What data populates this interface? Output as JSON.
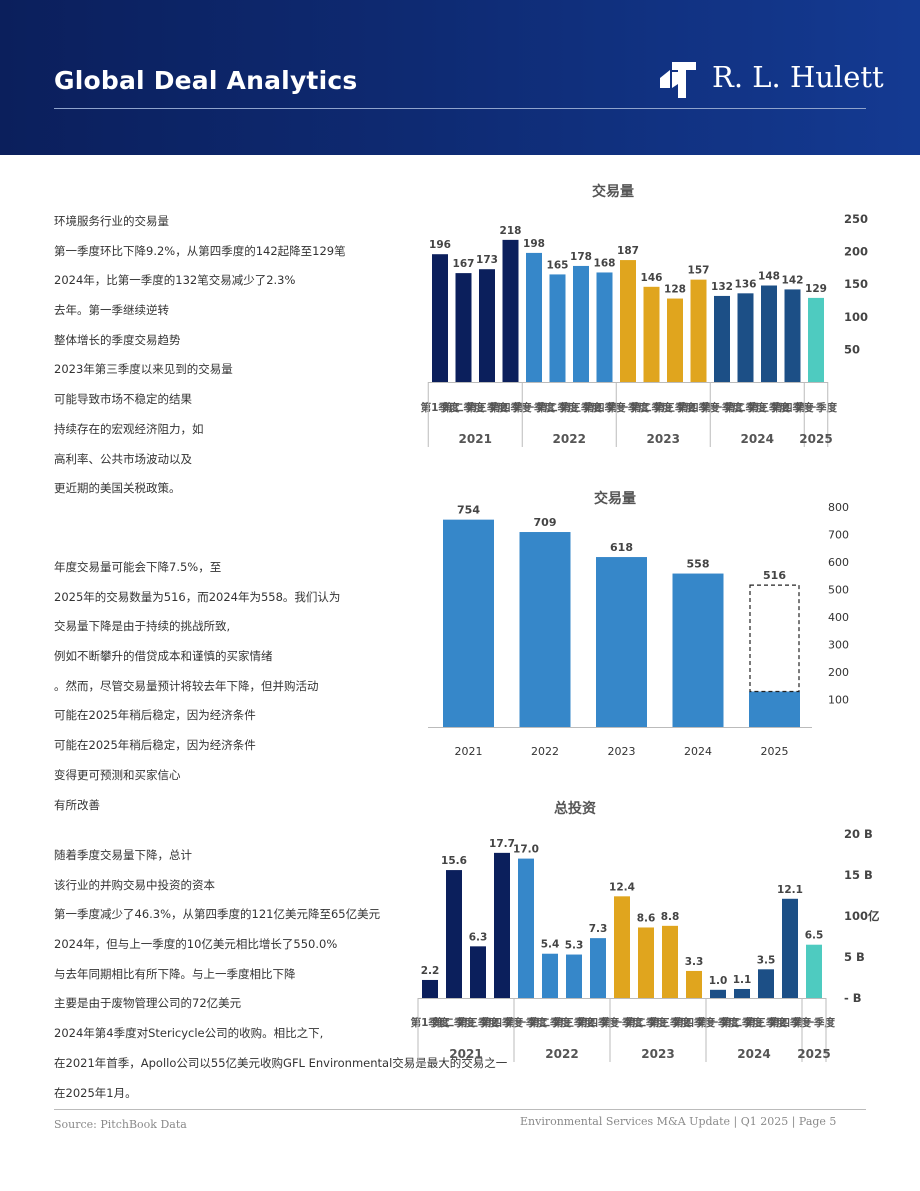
{
  "header": {
    "title": "Global Deal Analytics",
    "logo_text": "R. L. Hulett"
  },
  "text_block_1": [
    "环境服务行业的交易量",
    "第一季度环比下降9.2%，从第四季度的142起降至129笔",
    "2024年，比第一季度的132笔交易减少了2.3%",
    "去年。第一季继续逆转",
    "整体增长的季度交易趋势",
    "2023年第三季度以来见到的交易量",
    "可能导致市场不稳定的结果",
    "持续存在的宏观经济阻力，如",
    "高利率、公共市场波动以及",
    "更近期的美国关税政策。"
  ],
  "text_block_2": [
    "年度交易量可能会下降7.5%，至",
    "2025年的交易数量为516，而2024年为558。我们认为",
    "交易量下降是由于持续的挑战所致,",
    "例如不断攀升的借贷成本和谨慎的买家情绪",
    "。然而，尽管交易量预计将较去年下降，但并购活动",
    "可能在2025年稍后稳定，因为经济条件",
    "可能在2025年稍后稳定，因为经济条件",
    "变得更可预测和买家信心",
    "有所改善"
  ],
  "text_block_3": [
    "随着季度交易量下降，总计",
    "该行业的并购交易中投资的资本",
    "第一季度减少了46.3%，从第四季度的121亿美元降至65亿美元",
    "2024年，但与上一季度的10亿美元相比增长了550.0%",
    "与去年同期相比有所下降。与上一季度相比下降",
    "主要是由于废物管理公司的72亿美元",
    "2024年第4季度对Stericycle公司的收购。相比之下,",
    "在2021年首季，Apollo公司以55亿美元收购GFL Environmental交易是最大的交易之一",
    "在2025年1月。"
  ],
  "footer": {
    "source": "Source: PitchBook Data",
    "page": "Environmental Services M&A Update | Q1 2025 | Page 5"
  },
  "colors": {
    "y2021": "#0b1f5c",
    "y2022": "#3687c9",
    "y2023": "#e0a51e",
    "y2024": "#1c4f86",
    "y2025": "#4ecbc0",
    "annual": "#3687c9"
  },
  "chart_data": [
    {
      "type": "bar",
      "title": "交易量",
      "series": [
        {
          "values": [
            196,
            167,
            173,
            218,
            198,
            165,
            178,
            168,
            187,
            146,
            128,
            157,
            132,
            136,
            148,
            142,
            129
          ]
        }
      ],
      "quarters": [
        "第1季度",
        "第二季度",
        "第三季度",
        "第四季度",
        "第一季度",
        "第二季度",
        "第三季度",
        "第四季度",
        "第一季度",
        "第二季度",
        "第三季度",
        "第四季度",
        "第一季度",
        "第二季度",
        "第三季度",
        "第四季度",
        "第一季度"
      ],
      "years": [
        {
          "label": "2021",
          "count": 4
        },
        {
          "label": "2022",
          "count": 4
        },
        {
          "label": "2023",
          "count": 4
        },
        {
          "label": "2024",
          "count": 4
        },
        {
          "label": "2025",
          "count": 1
        }
      ],
      "yticks": [
        50,
        100,
        150,
        200,
        250
      ],
      "ylim": [
        0,
        250
      ],
      "axis_position": "right",
      "grid": false
    },
    {
      "type": "bar",
      "title": "交易量",
      "categories": [
        "2021",
        "2022",
        "2023",
        "2024",
        "2025"
      ],
      "values": [
        754,
        709,
        618,
        558,
        516
      ],
      "actual_2025": 129,
      "yticks": [
        100,
        200,
        300,
        400,
        500,
        600,
        700,
        800
      ],
      "ylim": [
        0,
        800
      ],
      "axis_position": "right",
      "projection": "2025 bar shown as dashed outline above actual portion",
      "grid": false
    },
    {
      "type": "bar",
      "title": "总投资",
      "series": [
        {
          "values": [
            2.2,
            15.6,
            6.3,
            17.7,
            17.0,
            5.4,
            5.3,
            7.3,
            12.4,
            8.6,
            8.8,
            3.3,
            1.0,
            1.1,
            3.5,
            12.1,
            6.5
          ]
        }
      ],
      "value_labels": [
        "2.2",
        "15.6",
        "6.3",
        "17.7",
        "17.0",
        "5.4",
        "5.3",
        "7.3",
        "12.4",
        "8.6",
        "8.8",
        "3.3",
        "1.0",
        "1.1",
        "3.5",
        "12.1",
        "6.5"
      ],
      "quarters": [
        "第1季度",
        "第二季度",
        "第三季度",
        "第四季度",
        "第一季度",
        "第二季度",
        "第三季度",
        "第四季度",
        "第一季度",
        "第二季度",
        "第三季度",
        "第四季度",
        "第一季度",
        "第二季度",
        "第三季度",
        "第四季度",
        "第一季度"
      ],
      "year_labels": [
        "2021",
        "2022",
        "2023",
        "2024",
        "2025"
      ],
      "year_counts": [
        4,
        4,
        4,
        4,
        1
      ],
      "yticks": [
        "- B",
        "5 B",
        "100亿",
        "15 B",
        "20 B"
      ],
      "ytick_values": [
        0,
        5,
        10,
        15,
        20
      ],
      "ylim": [
        0,
        20
      ],
      "axis_position": "right",
      "grid": false
    }
  ]
}
